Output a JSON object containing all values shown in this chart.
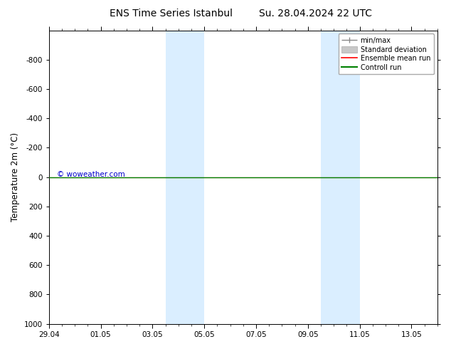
{
  "title": "ENS Time Series Istanbul",
  "title2": "Su. 28.04.2024 22 UTC",
  "ylabel": "Temperature 2m (°C)",
  "ylim_top": -1000,
  "ylim_bottom": 1000,
  "yticks": [
    -800,
    -600,
    -400,
    -200,
    0,
    200,
    400,
    600,
    800,
    1000
  ],
  "xtick_labels": [
    "29.04",
    "01.05",
    "03.05",
    "05.05",
    "07.05",
    "09.05",
    "11.05",
    "13.05"
  ],
  "xtick_positions": [
    0,
    2,
    4,
    6,
    8,
    10,
    12,
    14
  ],
  "x_minor_step": 0.5,
  "xlim": [
    0,
    15
  ],
  "shaded_regions": [
    {
      "start": 4.5,
      "end": 6.0
    },
    {
      "start": 10.5,
      "end": 12.0
    }
  ],
  "shaded_color": "#daeeff",
  "background_color": "#ffffff",
  "plot_background": "#ffffff",
  "line_y": 0.0,
  "ensemble_mean_color": "#ff0000",
  "control_run_color": "#008000",
  "std_dev_color": "#c8c8c8",
  "minmax_color": "#888888",
  "watermark": "© woweather.com",
  "watermark_color": "#0000cc",
  "legend_entries": [
    "min/max",
    "Standard deviation",
    "Ensemble mean run",
    "Controll run"
  ],
  "title_fontsize": 10,
  "tick_fontsize": 7.5,
  "ylabel_fontsize": 8.5,
  "legend_fontsize": 7
}
